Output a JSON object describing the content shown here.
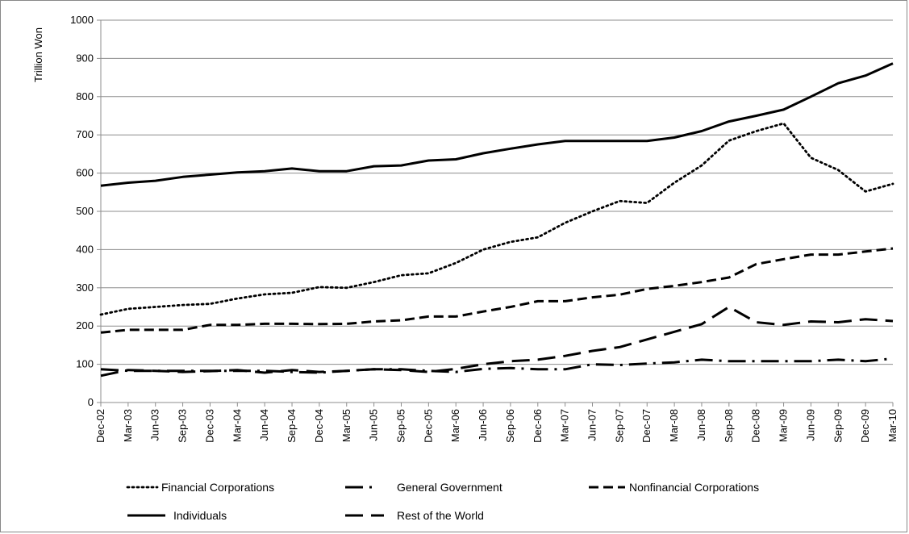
{
  "chart_data": {
    "type": "line",
    "ylabel": "Trillion Won",
    "xlabel": "",
    "title": "",
    "ylim": [
      0,
      1000
    ],
    "yticks": [
      0,
      100,
      200,
      300,
      400,
      500,
      600,
      700,
      800,
      900,
      1000
    ],
    "grid": true,
    "legend_position": "bottom",
    "categories": [
      "Dec-02",
      "Mar-03",
      "Jun-03",
      "Sep-03",
      "Dec-03",
      "Mar-04",
      "Jun-04",
      "Sep-04",
      "Dec-04",
      "Mar-05",
      "Jun-05",
      "Sep-05",
      "Dec-05",
      "Mar-06",
      "Jun-06",
      "Sep-06",
      "Dec-06",
      "Mar-07",
      "Jun-07",
      "Sep-07",
      "Dec-07",
      "Mar-08",
      "Jun-08",
      "Sep-08",
      "Dec-08",
      "Mar-09",
      "Jun-09",
      "Sep-09",
      "Dec-09",
      "Mar-10"
    ],
    "series": [
      {
        "name": "Financial Corporations",
        "style": "dotted",
        "values": [
          230,
          245,
          250,
          255,
          258,
          272,
          283,
          287,
          302,
          300,
          315,
          333,
          338,
          365,
          400,
          420,
          432,
          470,
          500,
          527,
          522,
          575,
          620,
          685,
          710,
          730,
          640,
          608,
          552,
          572
        ]
      },
      {
        "name": "General Government",
        "style": "long-dash-dot",
        "values": [
          87,
          83,
          83,
          83,
          83,
          83,
          83,
          80,
          78,
          83,
          87,
          87,
          83,
          80,
          88,
          90,
          87,
          87,
          100,
          98,
          102,
          105,
          112,
          108,
          108,
          108,
          108,
          112,
          108,
          115
        ]
      },
      {
        "name": "Nonfinancial Corporations",
        "style": "dashed",
        "values": [
          183,
          190,
          190,
          190,
          203,
          203,
          206,
          206,
          205,
          206,
          212,
          215,
          225,
          225,
          238,
          250,
          265,
          265,
          275,
          282,
          297,
          305,
          315,
          327,
          362,
          375,
          387,
          387,
          395,
          403
        ]
      },
      {
        "name": "Individuals",
        "style": "solid",
        "values": [
          567,
          575,
          580,
          590,
          596,
          602,
          605,
          612,
          605,
          605,
          618,
          620,
          633,
          636,
          652,
          664,
          675,
          684,
          684,
          684,
          684,
          693,
          710,
          735,
          750,
          766,
          800,
          835,
          855,
          887
        ]
      },
      {
        "name": "Rest of the World",
        "style": "long-dash",
        "values": [
          70,
          85,
          83,
          80,
          82,
          85,
          78,
          85,
          80,
          83,
          87,
          85,
          80,
          88,
          100,
          108,
          112,
          122,
          135,
          145,
          165,
          185,
          205,
          250,
          210,
          203,
          212,
          210,
          218,
          213
        ]
      }
    ]
  },
  "colors": {
    "line": "#000000",
    "grid": "#8c8c8c",
    "axis": "#8c8c8c"
  }
}
